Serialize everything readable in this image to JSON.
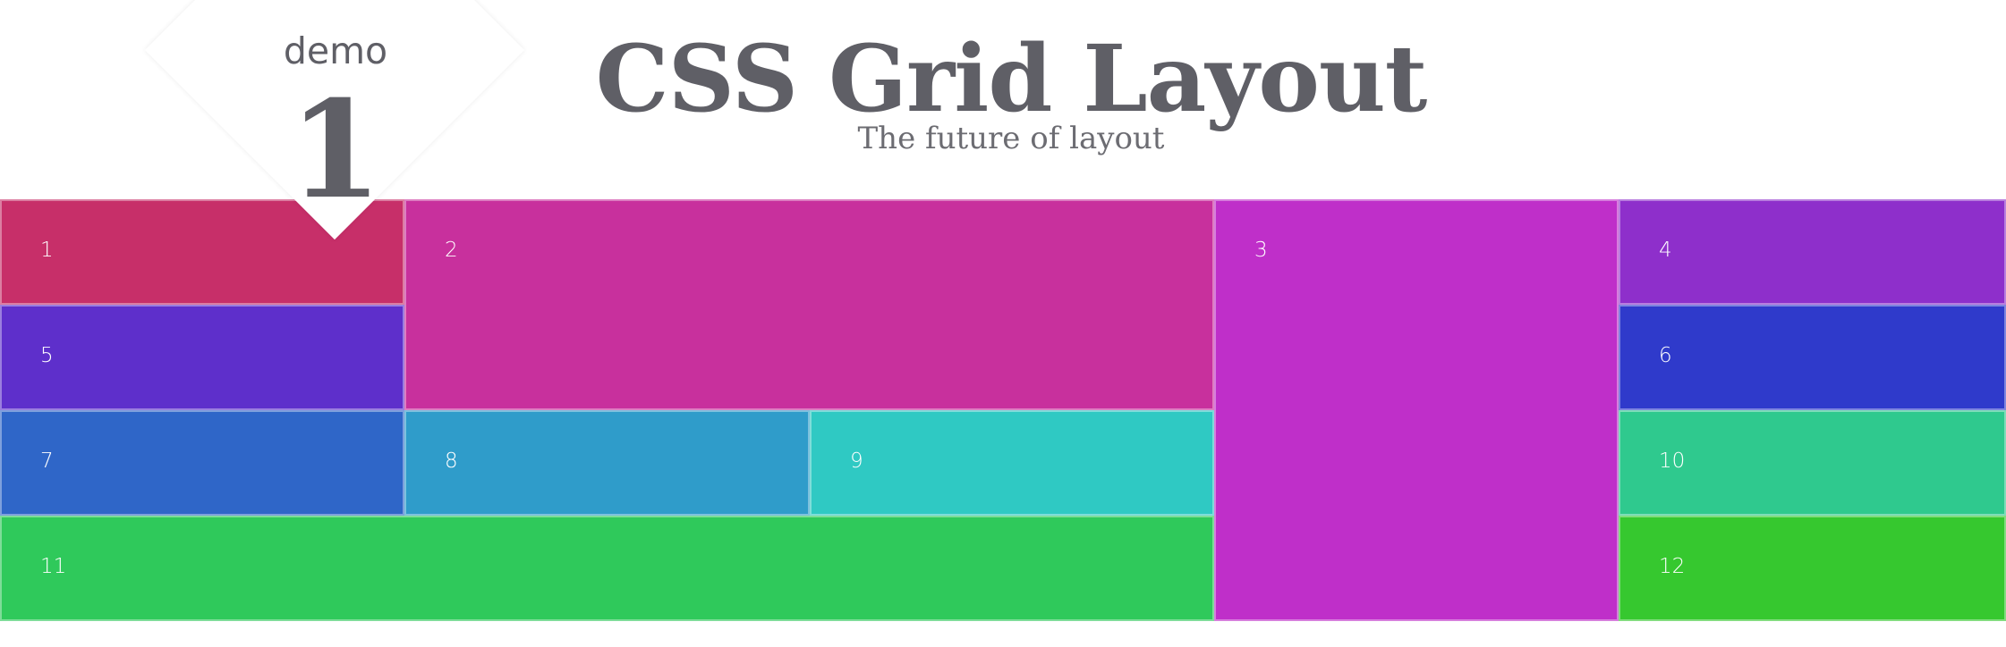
{
  "header": {
    "title": "CSS Grid Layout",
    "subtitle": "The future of layout"
  },
  "badge": {
    "text": "demo",
    "number": "1"
  },
  "grid": {
    "cells": [
      {
        "label": "1",
        "color": "#C72F69"
      },
      {
        "label": "2",
        "color": "#C8309D"
      },
      {
        "label": "3",
        "color": "#BF2FC9"
      },
      {
        "label": "4",
        "color": "#8E2FCB"
      },
      {
        "label": "5",
        "color": "#5E2FCB"
      },
      {
        "label": "6",
        "color": "#2F3ACB"
      },
      {
        "label": "7",
        "color": "#2F66C8"
      },
      {
        "label": "8",
        "color": "#2F9CCA"
      },
      {
        "label": "9",
        "color": "#2FC9C3"
      },
      {
        "label": "10",
        "color": "#2FC98E"
      },
      {
        "label": "11",
        "color": "#2FC95B"
      },
      {
        "label": "12",
        "color": "#36C82F"
      }
    ]
  }
}
